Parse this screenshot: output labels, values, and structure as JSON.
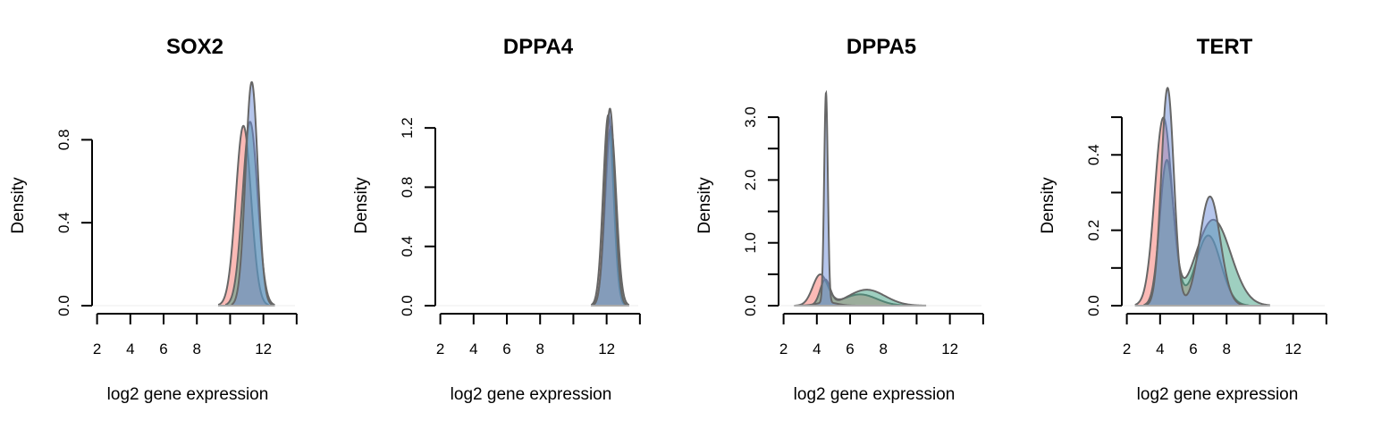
{
  "chart_data": [
    {
      "type": "area",
      "title": "SOX2",
      "xlabel": "log2 gene expression",
      "ylabel": "Density",
      "xlim": [
        1,
        13.9
      ],
      "ylim": [
        0,
        1.0
      ],
      "x_ticks": [
        2,
        4,
        6,
        8,
        12
      ],
      "y_ticks": [
        0.0,
        0.4,
        0.8
      ],
      "y_tick_labels": [
        "0.0",
        "0.4",
        "0.8"
      ],
      "series": [
        {
          "color": "#f8766d",
          "components": [
            {
              "weight": 1.0,
              "mean": 10.8,
              "sd": 0.46
            }
          ]
        },
        {
          "color": "#3d9f82",
          "components": [
            {
              "weight": 1.0,
              "mean": 11.2,
              "sd": 0.45
            }
          ]
        },
        {
          "color": "#6b8cd8",
          "components": [
            {
              "weight": 1.0,
              "mean": 11.3,
              "sd": 0.37
            }
          ]
        }
      ]
    },
    {
      "type": "area",
      "title": "DPPA4",
      "xlabel": "log2 gene expression",
      "ylabel": "Density",
      "xlim": [
        1,
        13.9
      ],
      "ylim": [
        0,
        1.4
      ],
      "x_ticks": [
        2,
        4,
        6,
        8,
        12
      ],
      "y_ticks": [
        0.0,
        0.4,
        0.8,
        1.2
      ],
      "y_tick_labels": [
        "0.0",
        "0.4",
        "0.8",
        "1.2"
      ],
      "series": [
        {
          "color": "#f8766d",
          "components": [
            {
              "weight": 1.0,
              "mean": 12.1,
              "sd": 0.31
            }
          ]
        },
        {
          "color": "#3d9f82",
          "components": [
            {
              "weight": 1.0,
              "mean": 12.25,
              "sd": 0.33
            }
          ]
        },
        {
          "color": "#6b8cd8",
          "components": [
            {
              "weight": 1.0,
              "mean": 12.2,
              "sd": 0.3
            }
          ]
        }
      ]
    },
    {
      "type": "area",
      "title": "DPPA5",
      "xlabel": "log2 gene expression",
      "ylabel": "Density",
      "xlim": [
        1,
        13.9
      ],
      "ylim": [
        0,
        3.3
      ],
      "x_ticks": [
        2,
        4,
        6,
        8,
        12
      ],
      "y_ticks": [
        0.0,
        0.5,
        1.0,
        1.5,
        2.0,
        2.5,
        3.0
      ],
      "y_tick_labels": [
        "0.0",
        "",
        "1.0",
        "",
        "2.0",
        "",
        "3.0"
      ],
      "series": [
        {
          "color": "#f8766d",
          "components": [
            {
              "weight": 0.55,
              "mean": 4.2,
              "sd": 0.45
            },
            {
              "weight": 0.45,
              "mean": 6.6,
              "sd": 1.0
            }
          ]
        },
        {
          "color": "#3d9f82",
          "components": [
            {
              "weight": 0.3,
              "mean": 4.5,
              "sd": 0.3
            },
            {
              "weight": 0.7,
              "mean": 7.0,
              "sd": 1.1
            }
          ]
        },
        {
          "color": "#6b8cd8",
          "components": [
            {
              "weight": 0.92,
              "mean": 4.55,
              "sd": 0.11
            },
            {
              "weight": 0.08,
              "mean": 4.6,
              "sd": 0.6
            }
          ]
        }
      ]
    },
    {
      "type": "area",
      "title": "TERT",
      "xlabel": "log2 gene expression",
      "ylabel": "Density",
      "xlim": [
        1,
        13.9
      ],
      "ylim": [
        0,
        0.55
      ],
      "x_ticks": [
        2,
        4,
        6,
        8,
        12
      ],
      "y_ticks": [
        0.0,
        0.1,
        0.2,
        0.3,
        0.4,
        0.5
      ],
      "y_tick_labels": [
        "0.0",
        "",
        "0.2",
        "",
        "0.4",
        ""
      ],
      "series": [
        {
          "color": "#f8766d",
          "components": [
            {
              "weight": 0.65,
              "mean": 4.2,
              "sd": 0.52
            },
            {
              "weight": 0.35,
              "mean": 6.9,
              "sd": 0.75
            }
          ]
        },
        {
          "color": "#3d9f82",
          "components": [
            {
              "weight": 0.4,
              "mean": 4.4,
              "sd": 0.42
            },
            {
              "weight": 0.6,
              "mean": 7.2,
              "sd": 1.05
            }
          ]
        },
        {
          "color": "#6b8cd8",
          "components": [
            {
              "weight": 0.55,
              "mean": 4.45,
              "sd": 0.38
            },
            {
              "weight": 0.45,
              "mean": 7.0,
              "sd": 0.62
            }
          ]
        }
      ]
    }
  ]
}
